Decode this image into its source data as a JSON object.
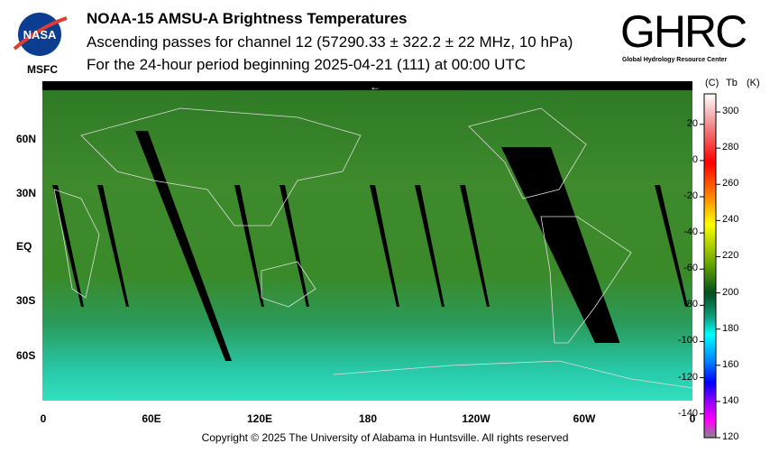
{
  "header": {
    "title": "NOAA-15 AMSU-A Brightness Temperatures",
    "subtitle1": "Ascending passes for channel 12 (57290.33 ± 322.2 ± 22 MHz, 10 hPa)",
    "subtitle2": "For the 24-hour period beginning 2025-04-21 (111) at 00:00 UTC"
  },
  "logos": {
    "left": "NASA",
    "left_caption": "MSFC",
    "right": "GHRC",
    "right_caption": "Global Hydrology Resource Center"
  },
  "footer": {
    "copyright": "Copyright © 2025 The University of Alabama in Huntsville.  All rights reserved"
  },
  "chart_data": {
    "type": "heatmap",
    "title": "NOAA-15 AMSU-A Brightness Temperatures",
    "x_ticks": [
      "0",
      "60E",
      "120E",
      "180",
      "120W",
      "60W",
      "0"
    ],
    "y_ticks": [
      "60N",
      "30N",
      "EQ",
      "30S",
      "60S"
    ],
    "colorbar": {
      "label_c": "(C)",
      "label_tb": "Tb",
      "label_k": "(K)",
      "k_ticks": [
        300,
        280,
        260,
        240,
        220,
        200,
        180,
        160,
        140,
        120
      ],
      "c_ticks": [
        20,
        0,
        -20,
        -40,
        -60,
        -80,
        -100,
        -120,
        -140
      ],
      "range_k": [
        120,
        310
      ]
    },
    "colors": {
      "green_mid": "#3a8a2a",
      "green_north": "#2e7a24",
      "teal_south": "#30d8b8",
      "gap": "#000000"
    },
    "date_line_arrow": "←"
  }
}
